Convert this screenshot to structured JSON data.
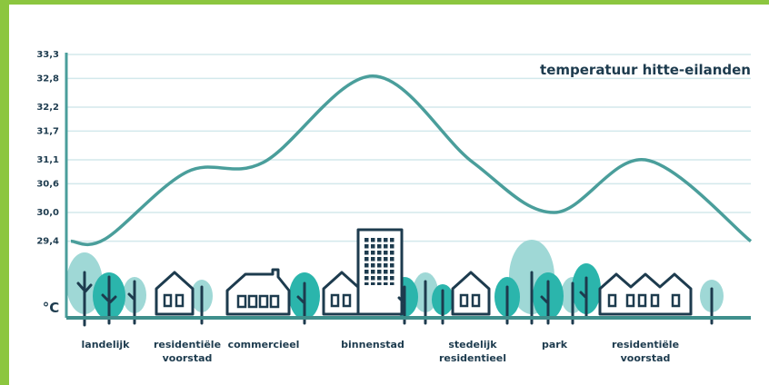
{
  "chart_data": {
    "type": "line",
    "title": "temperatuur hitte-eilanden",
    "y_unit": "°C",
    "categories": [
      null,
      "landelijk",
      "residentiële voorstad",
      "commercieel",
      "binnenstad",
      "stedelijk residentieel",
      "park",
      "residentiële voorstad",
      null
    ],
    "series": [
      {
        "name": "temperatuur",
        "color": "#4a9e9b",
        "values": [
          29.4,
          29.45,
          30.85,
          31.05,
          32.85,
          31.05,
          30.0,
          31.1,
          29.4
        ]
      }
    ],
    "ylim": [
      27.8,
      33.3
    ],
    "yticks": [
      {
        "value": 29.4,
        "label": "29,4"
      },
      {
        "value": 30.0,
        "label": "30,0"
      },
      {
        "value": 30.6,
        "label": "30,6"
      },
      {
        "value": 31.1,
        "label": "31,1"
      },
      {
        "value": 31.7,
        "label": "31,7"
      },
      {
        "value": 32.2,
        "label": "32,2"
      },
      {
        "value": 32.8,
        "label": "32,8"
      },
      {
        "value": 33.3,
        "label": "33,3"
      }
    ],
    "grid": true
  }
}
